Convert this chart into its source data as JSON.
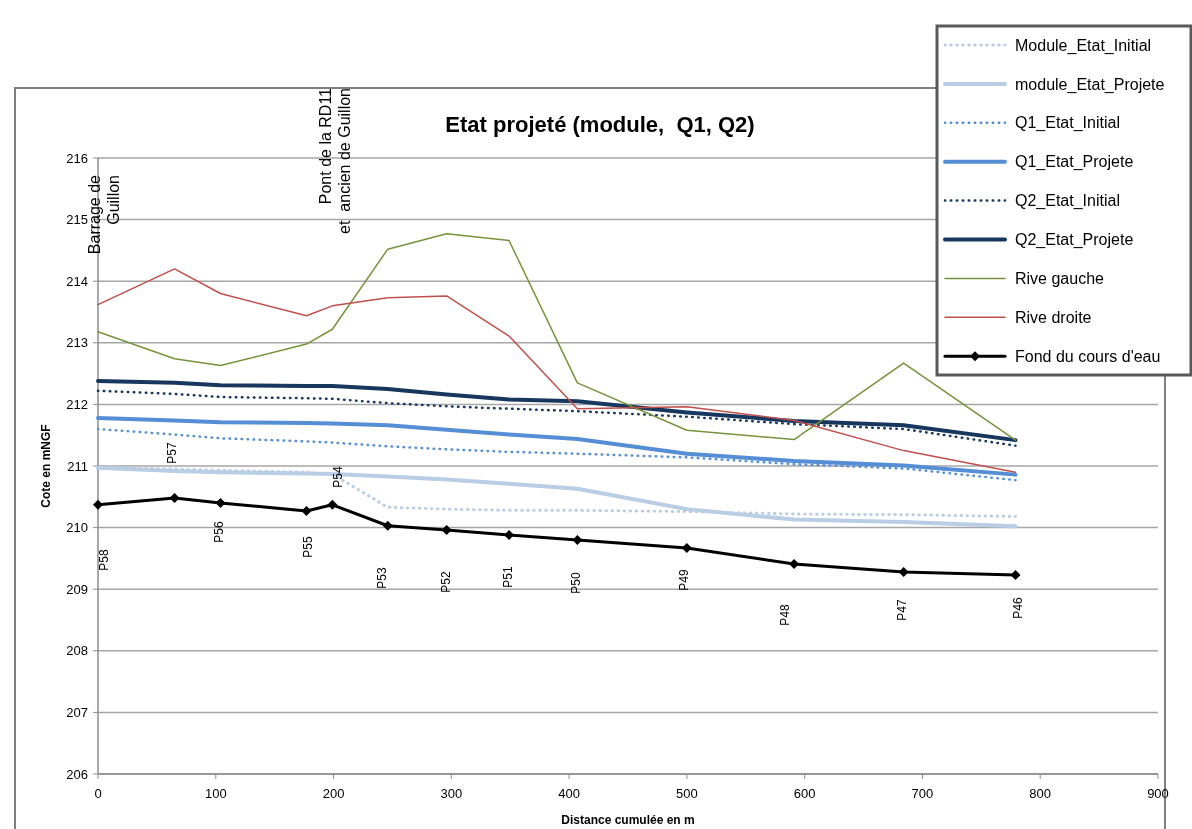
{
  "chart_data": {
    "type": "line",
    "title": "Etat projeté (module,  Q1, Q2)",
    "xlabel": "Distance cumulée en m",
    "ylabel": "Cote en mNGF",
    "xlim": [
      0,
      900
    ],
    "xticks": [
      0,
      100,
      200,
      300,
      400,
      500,
      600,
      700,
      800,
      900
    ],
    "ylim": [
      206,
      216
    ],
    "yticks": [
      206,
      207,
      208,
      209,
      210,
      211,
      212,
      213,
      214,
      215,
      216
    ],
    "grid": "y",
    "legend": "top right",
    "x": [
      0,
      65,
      104,
      177,
      199,
      246,
      296,
      349,
      407,
      500,
      591,
      684,
      779
    ],
    "series": [
      {
        "name": "Module_Etat_Initial",
        "color": "#b9cde5",
        "line_style": "dotted",
        "marker": "none",
        "values": [
          210.98,
          210.95,
          210.93,
          210.9,
          210.87,
          210.33,
          210.3,
          210.28,
          210.28,
          210.26,
          210.22,
          210.21,
          210.18
        ]
      },
      {
        "name": "module_Etat_Projete",
        "color": "#b9cde5",
        "line_style": "solid",
        "marker": "none",
        "values": [
          210.97,
          210.92,
          210.9,
          210.88,
          210.87,
          210.83,
          210.78,
          210.71,
          210.63,
          210.3,
          210.13,
          210.09,
          210.02
        ]
      },
      {
        "name": "Q1_Etat_Initial",
        "color": "#558ed5",
        "line_style": "dotted",
        "marker": "none",
        "values": [
          211.6,
          211.51,
          211.45,
          211.4,
          211.38,
          211.32,
          211.27,
          211.23,
          211.2,
          211.14,
          211.03,
          210.96,
          210.77
        ]
      },
      {
        "name": "Q1_Etat_Projete",
        "color": "#558ed5",
        "line_style": "solid",
        "marker": "none",
        "values": [
          211.78,
          211.74,
          211.71,
          211.7,
          211.69,
          211.66,
          211.59,
          211.51,
          211.44,
          211.2,
          211.08,
          211.01,
          210.86
        ]
      },
      {
        "name": "Q2_Etat_Initial",
        "color": "#17375e",
        "line_style": "dotted",
        "marker": "none",
        "values": [
          212.22,
          212.17,
          212.12,
          212.1,
          212.09,
          212.02,
          211.97,
          211.93,
          211.89,
          211.8,
          211.68,
          211.6,
          211.33
        ]
      },
      {
        "name": "Q2_Etat_Projete",
        "color": "#17375e",
        "line_style": "solid",
        "marker": "none",
        "values": [
          212.38,
          212.35,
          212.31,
          212.3,
          212.3,
          212.25,
          212.16,
          212.08,
          212.05,
          211.87,
          211.73,
          211.66,
          211.42
        ]
      },
      {
        "name": "Rive gauche",
        "color": "#77933c",
        "line_style": "solid",
        "marker": "none",
        "values": [
          213.18,
          212.74,
          212.63,
          212.98,
          213.22,
          214.52,
          214.77,
          214.66,
          212.35,
          211.58,
          211.43,
          212.67,
          211.42
        ]
      },
      {
        "name": "Rive droite",
        "color": "#c0504d",
        "line_style": "solid",
        "marker": "none",
        "values": [
          213.62,
          214.2,
          213.8,
          213.44,
          213.6,
          213.73,
          213.76,
          213.11,
          211.93,
          211.96,
          211.74,
          211.25,
          210.9
        ]
      },
      {
        "name": "Fond du cours d'eau",
        "color": "#000000",
        "line_style": "solid",
        "marker": "diamond",
        "values": [
          210.37,
          210.48,
          210.4,
          210.27,
          210.37,
          210.03,
          209.96,
          209.88,
          209.8,
          209.67,
          209.41,
          209.28,
          209.23
        ]
      }
    ],
    "annotations": [
      "Barrage de\nGuillon",
      "Pont de la RD11\net  ancien de Guillon",
      "P58",
      "P57",
      "P56",
      "P55",
      "P54",
      "P53",
      "P52",
      "P51",
      "P50",
      "P49",
      "P48",
      "P47",
      "P46"
    ]
  }
}
